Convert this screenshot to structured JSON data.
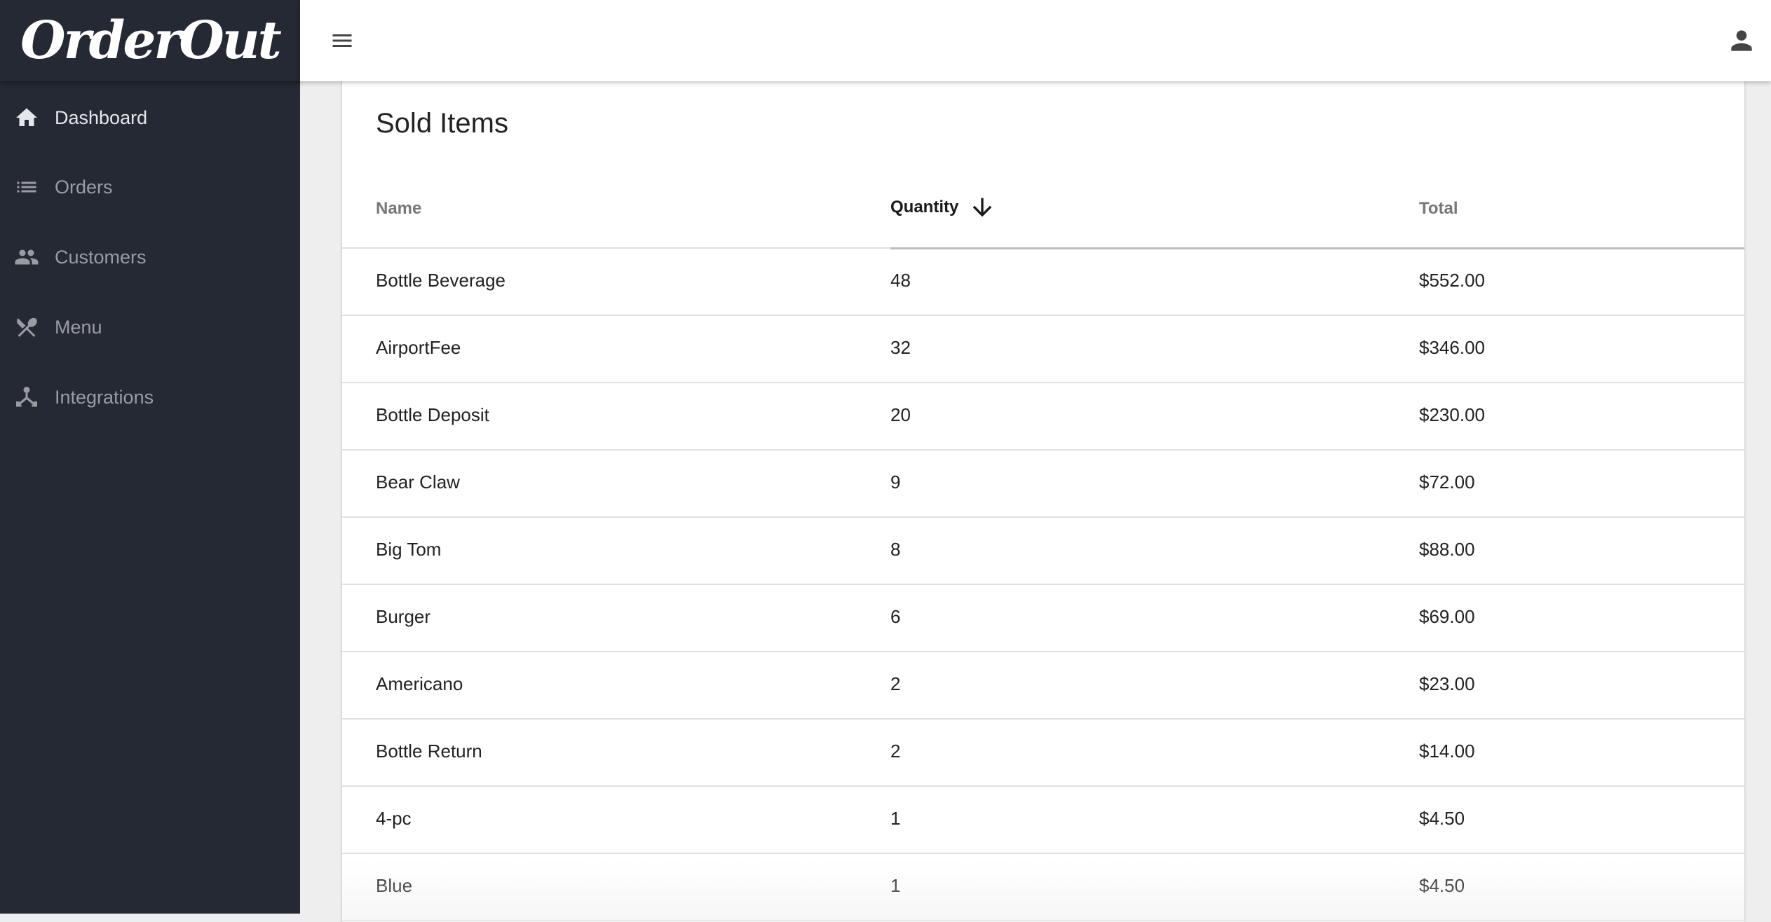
{
  "app": {
    "logo": "OrderOut"
  },
  "sidebar": {
    "items": [
      {
        "label": "Dashboard",
        "icon": "home-icon",
        "active": true
      },
      {
        "label": "Orders",
        "icon": "list-icon"
      },
      {
        "label": "Customers",
        "icon": "people-icon"
      },
      {
        "label": "Menu",
        "icon": "utensils-icon"
      },
      {
        "label": "Integrations",
        "icon": "hub-icon"
      }
    ]
  },
  "topbar": {
    "menu_icon": "hamburger-icon",
    "user_icon": "person-icon"
  },
  "card": {
    "title": "Sold Items",
    "columns": [
      "Name",
      "Quantity",
      "Total"
    ],
    "sort": {
      "column": "Quantity",
      "direction": "descending",
      "icon": "arrow-down-icon"
    },
    "rows": [
      {
        "name": "Bottle Beverage",
        "quantity": "48",
        "total": "$552.00"
      },
      {
        "name": "AirportFee",
        "quantity": "32",
        "total": "$346.00"
      },
      {
        "name": "Bottle Deposit",
        "quantity": "20",
        "total": "$230.00"
      },
      {
        "name": "Bear Claw",
        "quantity": "9",
        "total": "$72.00"
      },
      {
        "name": "Big Tom",
        "quantity": "8",
        "total": "$88.00"
      },
      {
        "name": "Burger",
        "quantity": "6",
        "total": "$69.00"
      },
      {
        "name": "Americano",
        "quantity": "2",
        "total": "$23.00"
      },
      {
        "name": "Bottle Return",
        "quantity": "2",
        "total": "$14.00"
      },
      {
        "name": "4-pc",
        "quantity": "1",
        "total": "$4.50"
      },
      {
        "name": "Blue",
        "quantity": "1",
        "total": "$4.50"
      }
    ]
  }
}
